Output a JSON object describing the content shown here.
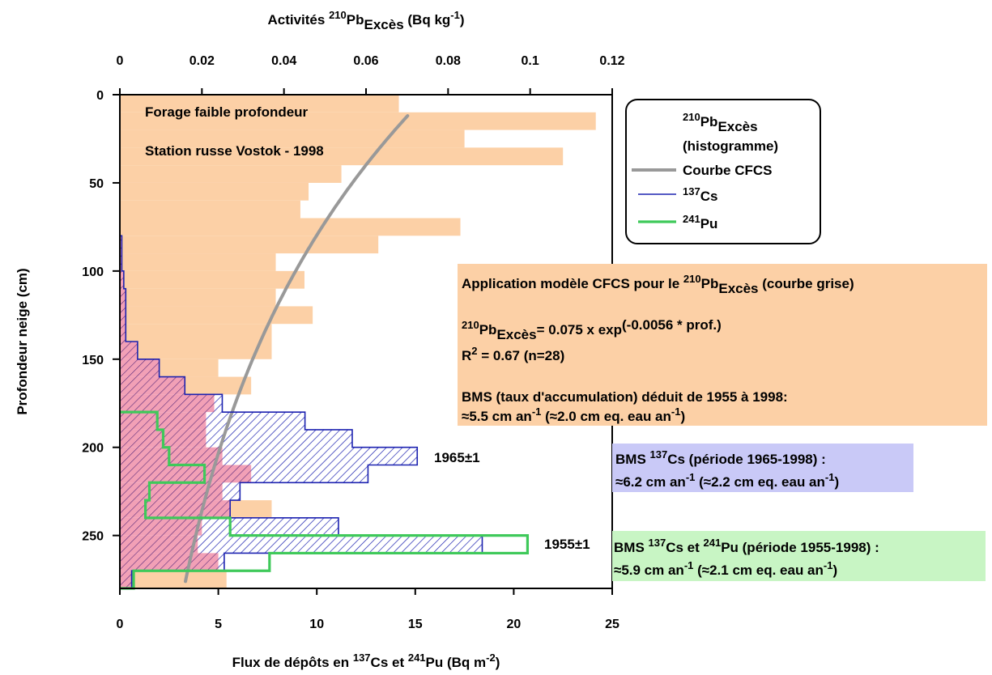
{
  "chart_data": {
    "type": "histogram",
    "top_axis": {
      "label": "Activités ",
      "label_iso": "210",
      "label_el": "Pb",
      "label_sub": "Excès",
      "label_unit_pre": " (Bq kg",
      "label_unit_sup": "-1",
      "label_unit_post": ")",
      "range": [
        0,
        0.12
      ],
      "ticks": [
        0,
        0.02,
        0.04,
        0.06,
        0.08,
        0.1,
        0.12
      ],
      "tick_labels": [
        "0",
        "0.02",
        "0.04",
        "0.06",
        "0.08",
        "0.1",
        "0.12"
      ]
    },
    "bottom_axis": {
      "label_a": "Flux de dépôts en ",
      "label_iso1": "137",
      "label_el1": "Cs et ",
      "label_iso2": "241",
      "label_el2": "Pu (Bq m",
      "label_unit_sup": "-2",
      "label_unit_post": ")",
      "range": [
        0,
        25
      ],
      "ticks": [
        0,
        5,
        10,
        15,
        20,
        25
      ],
      "tick_labels": [
        "0",
        "5",
        "10",
        "15",
        "20",
        "25"
      ]
    },
    "left_axis": {
      "label": "Profondeur neige (cm)",
      "range": [
        0,
        280
      ],
      "ticks": [
        0,
        50,
        100,
        150,
        200,
        250
      ],
      "tick_labels": [
        "0",
        "50",
        "100",
        "150",
        "200",
        "250"
      ],
      "inverted": true
    },
    "pb210_histogram": {
      "name_iso": "210",
      "name_el": "Pb",
      "name_sub": "Excès",
      "name_note": "(histogramme)",
      "color": "#fcd0a6",
      "bins": [
        {
          "top": 0,
          "bottom": 10,
          "value": 0.068
        },
        {
          "top": 10,
          "bottom": 20,
          "value": 0.116
        },
        {
          "top": 20,
          "bottom": 30,
          "value": 0.084
        },
        {
          "top": 30,
          "bottom": 40,
          "value": 0.108
        },
        {
          "top": 40,
          "bottom": 50,
          "value": 0.054
        },
        {
          "top": 50,
          "bottom": 60,
          "value": 0.046
        },
        {
          "top": 60,
          "bottom": 70,
          "value": 0.044
        },
        {
          "top": 70,
          "bottom": 80,
          "value": 0.083
        },
        {
          "top": 80,
          "bottom": 90,
          "value": 0.063
        },
        {
          "top": 90,
          "bottom": 100,
          "value": 0.038
        },
        {
          "top": 100,
          "bottom": 110,
          "value": 0.045
        },
        {
          "top": 110,
          "bottom": 120,
          "value": 0.038
        },
        {
          "top": 120,
          "bottom": 130,
          "value": 0.047
        },
        {
          "top": 130,
          "bottom": 140,
          "value": 0.037
        },
        {
          "top": 140,
          "bottom": 150,
          "value": 0.037
        },
        {
          "top": 150,
          "bottom": 160,
          "value": 0.024
        },
        {
          "top": 160,
          "bottom": 170,
          "value": 0.032
        },
        {
          "top": 170,
          "bottom": 180,
          "value": 0.023
        },
        {
          "top": 180,
          "bottom": 190,
          "value": 0.021
        },
        {
          "top": 190,
          "bottom": 200,
          "value": 0.021
        },
        {
          "top": 200,
          "bottom": 210,
          "value": 0.025
        },
        {
          "top": 210,
          "bottom": 220,
          "value": 0.032
        },
        {
          "top": 220,
          "bottom": 230,
          "value": 0.025
        },
        {
          "top": 230,
          "bottom": 240,
          "value": 0.037
        },
        {
          "top": 240,
          "bottom": 250,
          "value": 0.02
        },
        {
          "top": 250,
          "bottom": 260,
          "value": 0.019
        },
        {
          "top": 260,
          "bottom": 270,
          "value": 0.024
        },
        {
          "top": 270,
          "bottom": 280,
          "value": 0.026
        }
      ]
    },
    "cfcs_curve": {
      "name": "Courbe CFCS",
      "color": "#999999",
      "a": 0.075,
      "b": 0.0056,
      "depth_range": [
        12,
        277
      ]
    },
    "cs137": {
      "name_iso": "137",
      "name_el": "Cs",
      "color": "#1c22b0",
      "steps": [
        {
          "top": 80,
          "bottom": 100,
          "value": 0.1
        },
        {
          "top": 100,
          "bottom": 110,
          "value": 0.2
        },
        {
          "top": 110,
          "bottom": 140,
          "value": 0.3
        },
        {
          "top": 140,
          "bottom": 150,
          "value": 0.9
        },
        {
          "top": 150,
          "bottom": 160,
          "value": 2.0
        },
        {
          "top": 160,
          "bottom": 170,
          "value": 3.3
        },
        {
          "top": 170,
          "bottom": 180,
          "value": 5.2
        },
        {
          "top": 180,
          "bottom": 190,
          "value": 9.4
        },
        {
          "top": 190,
          "bottom": 200,
          "value": 11.8
        },
        {
          "top": 200,
          "bottom": 210,
          "value": 15.1
        },
        {
          "top": 210,
          "bottom": 220,
          "value": 12.6
        },
        {
          "top": 220,
          "bottom": 230,
          "value": 6.1
        },
        {
          "top": 230,
          "bottom": 240,
          "value": 5.6
        },
        {
          "top": 240,
          "bottom": 250,
          "value": 11.1
        },
        {
          "top": 250,
          "bottom": 260,
          "value": 18.4
        },
        {
          "top": 260,
          "bottom": 270,
          "value": 5.3
        },
        {
          "top": 270,
          "bottom": 280,
          "value": 0.6
        }
      ]
    },
    "pu241": {
      "name_iso": "241",
      "name_el": "Pu",
      "color": "#3fc95a",
      "steps": [
        {
          "top": 180,
          "bottom": 190,
          "value": 1.9
        },
        {
          "top": 190,
          "bottom": 200,
          "value": 2.2
        },
        {
          "top": 200,
          "bottom": 205,
          "value": 2.5
        },
        {
          "top": 205,
          "bottom": 210,
          "value": 2.5
        },
        {
          "top": 210,
          "bottom": 220,
          "value": 4.3
        },
        {
          "top": 220,
          "bottom": 230,
          "value": 1.5
        },
        {
          "top": 230,
          "bottom": 240,
          "value": 1.3
        },
        {
          "top": 240,
          "bottom": 250,
          "value": 5.6
        },
        {
          "top": 250,
          "bottom": 260,
          "value": 20.7
        },
        {
          "top": 260,
          "bottom": 270,
          "value": 7.6
        },
        {
          "top": 270,
          "bottom": 280,
          "value": 0.7
        }
      ]
    },
    "annotations": {
      "site1": "Forage faible profondeur",
      "site2": "Station russe Vostok - 1998",
      "date1965": "1965±1",
      "date1955": "1955±1"
    }
  },
  "boxes": {
    "cfcs": {
      "color": "#fcd0a6",
      "line1_pre": "Application modèle CFCS pour le ",
      "line1_iso": "210",
      "line1_el": "Pb",
      "line1_sub": "Excès",
      "line1_post": " (courbe grise)",
      "line2_iso": "210",
      "line2_el": "Pb",
      "line2_sub": "Excès",
      "line2_mid": "= 0.075 x exp",
      "line2_sup": "(-0.0056 * prof.)",
      "line3_pre": "R",
      "line3_sup": "2",
      "line3_post": " = 0.67 (n=28)",
      "line4": "BMS (taux d'accumulation) déduit de 1955 à 1998:",
      "line5_pre": "≈5.5 cm an",
      "line5_sup": "-1",
      "line5_mid": " (≈2.0 cm eq. eau an",
      "line5_sup2": "-1",
      "line5_post": ")"
    },
    "cs": {
      "color": "#c9c9f7",
      "line1_pre": "BMS ",
      "line1_iso": "137",
      "line1_post": "Cs (période 1965-1998) :",
      "line2_pre": "≈6.2 cm an",
      "line2_sup": "-1",
      "line2_mid": " (≈2.2 cm eq. eau an",
      "line2_sup2": "-1",
      "line2_post": ")"
    },
    "cspu": {
      "color": "#c8f5c4",
      "line1_pre": "BMS ",
      "line1_iso": "137",
      "line1_mid": "Cs  et ",
      "line1_iso2": "241",
      "line1_post": "Pu (période 1955-1998) :",
      "line2_pre": "≈5.9 cm an",
      "line2_sup": "-1",
      "line2_mid": " (≈2.1 cm eq. eau an",
      "line2_sup2": "-1",
      "line2_post": ")"
    }
  }
}
